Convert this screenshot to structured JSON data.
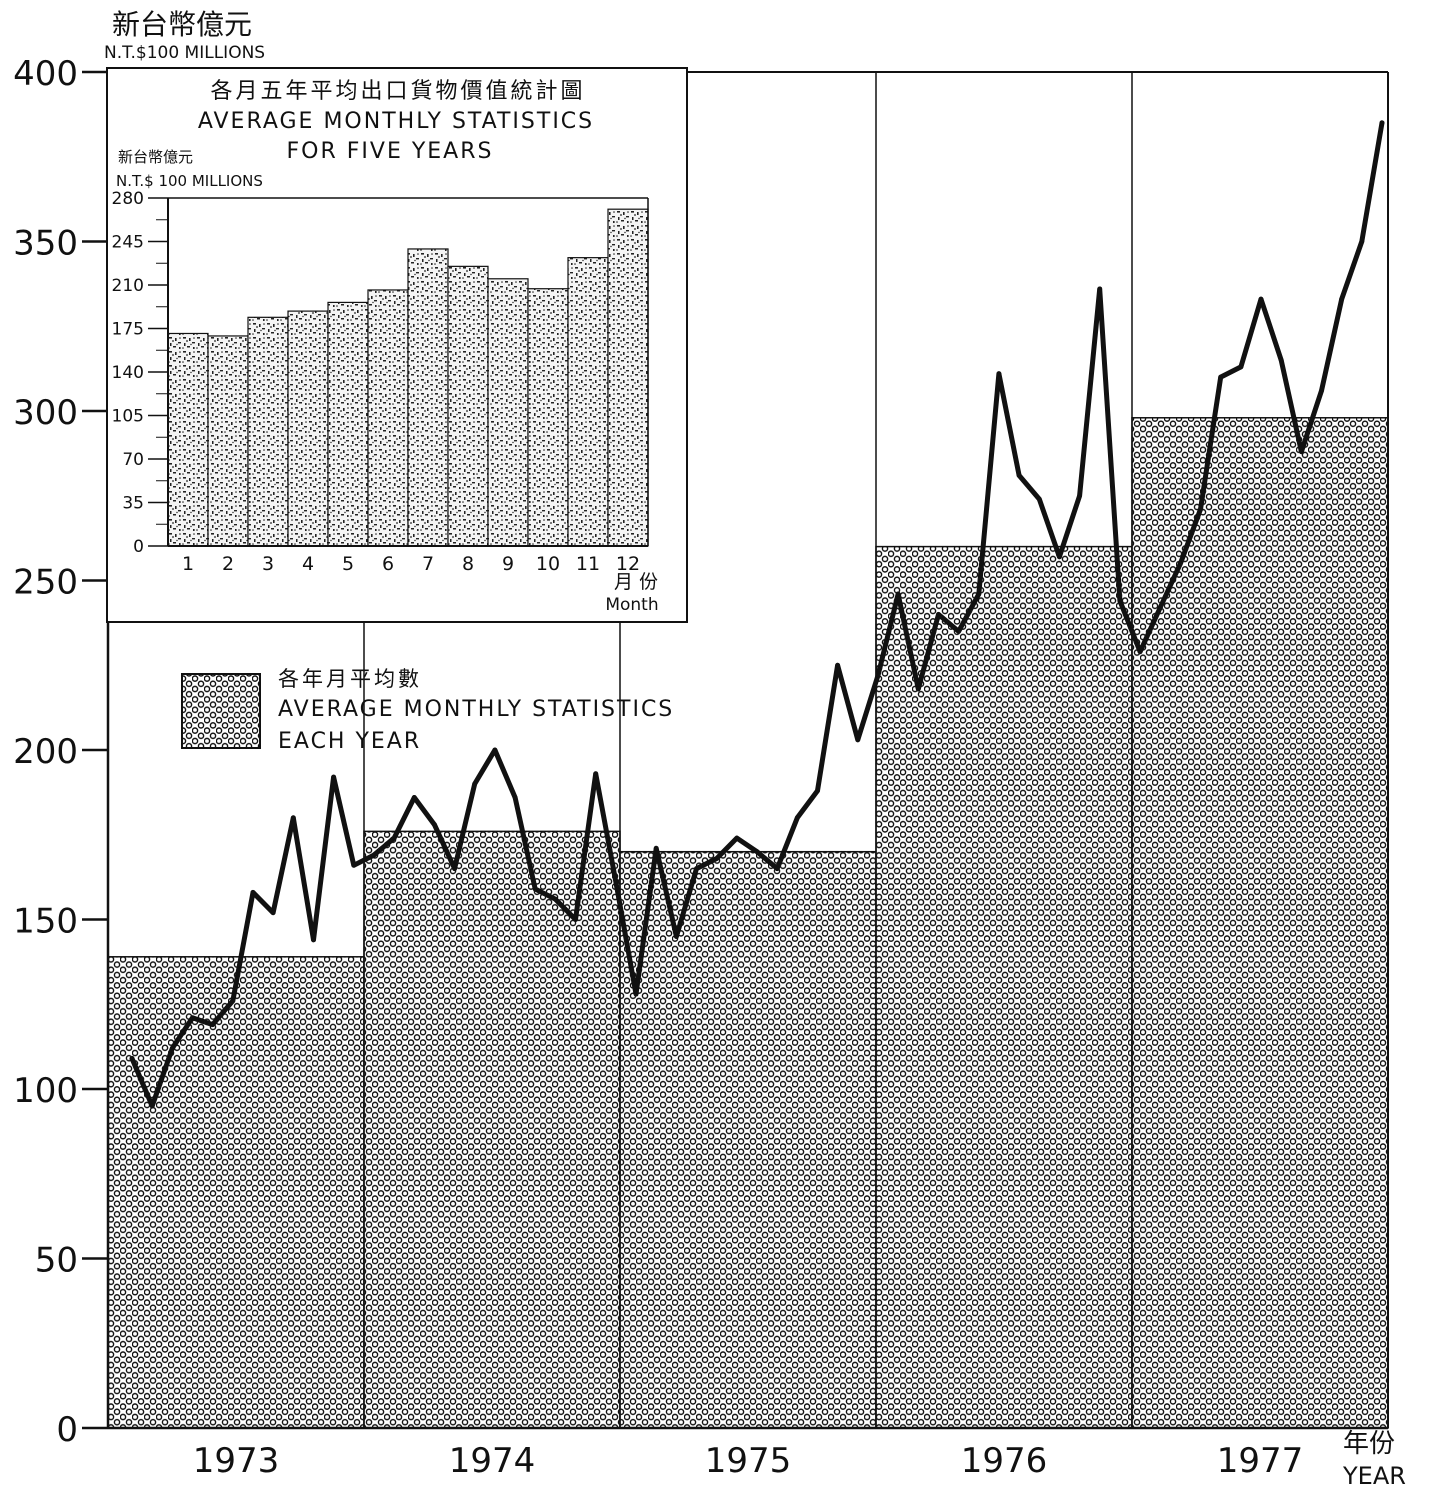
{
  "colors": {
    "ink": "#111111",
    "paper": "#ffffff",
    "hex_pattern": "hexagonal-lattice",
    "bar_pattern": "dense-speckle"
  },
  "chart_data": [
    {
      "type": "bar+line",
      "title": "",
      "ylabel": "新台幣億元",
      "ylabel_en": "N.T.$100  MILLIONS",
      "xlabel": "年份",
      "xlabel_en": "YEAR",
      "ylim": [
        0,
        400
      ],
      "yticks": [
        "0",
        "50",
        "100",
        "150",
        "200",
        "250",
        "300",
        "350",
        "400"
      ],
      "grid": false,
      "legend": {
        "placement": "left-middle",
        "label_zh": "各年月平均數",
        "label_en_1": "AVERAGE MONTHLY STATISTICS",
        "label_en_2": "EACH  YEAR"
      },
      "years": [
        "1973",
        "1974",
        "1975",
        "1976",
        "1977"
      ],
      "yearly_average": [
        139,
        176,
        170,
        260,
        298
      ],
      "monthly": [
        109,
        95,
        112,
        121,
        119,
        126,
        158,
        152,
        180,
        144,
        192,
        166,
        169,
        174,
        186,
        178,
        165,
        190,
        200,
        186,
        159,
        156,
        150,
        193,
        161,
        128,
        171,
        145,
        165,
        168,
        174,
        170,
        165,
        180,
        188,
        225,
        203,
        222,
        246,
        218,
        240,
        235,
        246,
        311,
        281,
        274,
        257,
        275,
        336,
        244,
        229,
        242,
        255,
        271,
        310,
        313,
        333,
        315,
        288,
        306,
        333,
        350,
        385
      ]
    },
    {
      "type": "bar",
      "title_zh": "各月五年平均出口貨物價值統計圖",
      "title_en_1": "AVERAGE  MONTHLY  STATISTICS",
      "title_en_2": "FOR  FIVE  YEARS",
      "ylabel": "新台幣億元",
      "ylabel_en": "N.T.$ 100  MILLIONS",
      "xlabel_zh": "月  份",
      "xlabel_en": "Month",
      "categories": [
        "1",
        "2",
        "3",
        "4",
        "5",
        "6",
        "7",
        "8",
        "9",
        "10",
        "11",
        "12"
      ],
      "values": [
        171,
        169,
        184,
        189,
        196,
        206,
        239,
        225,
        215,
        207,
        232,
        271
      ],
      "ylim": [
        0,
        280
      ],
      "yticks": [
        "0",
        "35",
        "70",
        "105",
        "140",
        "175",
        "210",
        "245",
        "280"
      ],
      "grid": false
    }
  ]
}
